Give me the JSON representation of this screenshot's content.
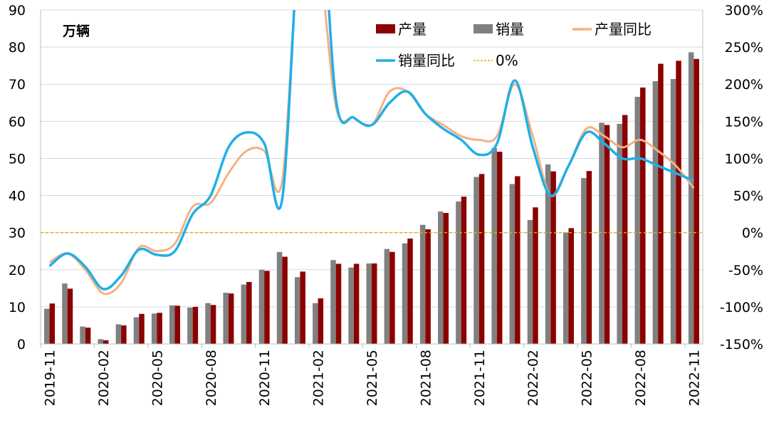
{
  "chart_data": {
    "type": "bar",
    "unit_label": "万辆",
    "categories": [
      "2019-11",
      "2019-12",
      "2020-01",
      "2020-02",
      "2020-03",
      "2020-04",
      "2020-05",
      "2020-06",
      "2020-07",
      "2020-08",
      "2020-09",
      "2020-10",
      "2020-11",
      "2020-12",
      "2021-01",
      "2021-02",
      "2021-03",
      "2021-04",
      "2021-05",
      "2021-06",
      "2021-07",
      "2021-08",
      "2021-09",
      "2021-10",
      "2021-11",
      "2021-12",
      "2022-01",
      "2022-02",
      "2022-03",
      "2022-04",
      "2022-05",
      "2022-06",
      "2022-07",
      "2022-08",
      "2022-09",
      "2022-10",
      "2022-11"
    ],
    "x_tick_labels": [
      "2019-11",
      "2020-02",
      "2020-05",
      "2020-08",
      "2020-11",
      "2021-02",
      "2021-05",
      "2021-08",
      "2021-11",
      "2022-02",
      "2022-05",
      "2022-08",
      "2022-11"
    ],
    "left_axis": {
      "ylim": [
        0,
        90
      ],
      "ticks": [
        "0",
        "10",
        "20",
        "30",
        "40",
        "50",
        "60",
        "70",
        "80",
        "90"
      ]
    },
    "right_axis": {
      "ylim": [
        -150,
        300
      ],
      "ticks": [
        "-150%",
        "-100%",
        "-50%",
        "0%",
        "50%",
        "100%",
        "150%",
        "200%",
        "250%",
        "300%"
      ]
    },
    "grid": true,
    "legend": [
      {
        "label": "产量",
        "kind": "bar"
      },
      {
        "label": "销量",
        "kind": "bar"
      },
      {
        "label": "产量同比",
        "kind": "line"
      },
      {
        "label": "销量同比",
        "kind": "line"
      },
      {
        "label": "0%",
        "kind": "dashed"
      }
    ],
    "series": [
      {
        "name": "销量",
        "axis": "left",
        "type": "bar",
        "color": "#808080",
        "values": [
          9.5,
          16.3,
          4.7,
          1.3,
          5.3,
          7.2,
          8.2,
          10.4,
          9.8,
          11.0,
          13.8,
          16.0,
          20.0,
          24.8,
          18.0,
          11.0,
          22.6,
          20.6,
          21.7,
          25.6,
          27.1,
          32.1,
          35.7,
          38.4,
          45.0,
          52.8,
          43.1,
          33.4,
          48.4,
          30.0,
          44.7,
          59.6,
          59.3,
          66.6,
          70.8,
          71.4,
          78.6
        ]
      },
      {
        "name": "产量",
        "axis": "left",
        "type": "bar",
        "color": "#8B0000",
        "values": [
          10.9,
          14.9,
          4.4,
          1.0,
          5.0,
          8.1,
          8.4,
          10.3,
          10.0,
          10.5,
          13.6,
          16.7,
          19.7,
          23.5,
          19.5,
          12.3,
          21.6,
          21.6,
          21.7,
          24.8,
          28.4,
          30.9,
          35.3,
          39.7,
          45.8,
          51.8,
          45.2,
          36.8,
          46.5,
          31.2,
          46.6,
          59.0,
          61.7,
          69.1,
          75.5,
          76.3,
          76.8
        ]
      },
      {
        "name": "产量同比",
        "axis": "right",
        "type": "line",
        "color": "#F4B183",
        "values": [
          -40,
          -28,
          -50,
          -82,
          -68,
          -20,
          -25,
          -15,
          35,
          40,
          80,
          110,
          110,
          70,
          400,
          380,
          170,
          155,
          145,
          190,
          190,
          160,
          145,
          130,
          125,
          130,
          200,
          130,
          50,
          90,
          140,
          130,
          115,
          125,
          110,
          90,
          60
        ]
      },
      {
        "name": "销量同比",
        "axis": "right",
        "type": "line",
        "color": "#1FAFE8",
        "values": [
          -45,
          -28,
          -46,
          -76,
          -58,
          -23,
          -30,
          -25,
          25,
          50,
          115,
          135,
          120,
          45,
          420,
          500,
          180,
          155,
          145,
          175,
          190,
          160,
          140,
          125,
          105,
          120,
          205,
          115,
          50,
          90,
          135,
          120,
          100,
          100,
          90,
          80,
          70
        ]
      },
      {
        "name": "0%",
        "axis": "right",
        "type": "hline",
        "color": "#E5B000",
        "value": 0
      }
    ]
  }
}
